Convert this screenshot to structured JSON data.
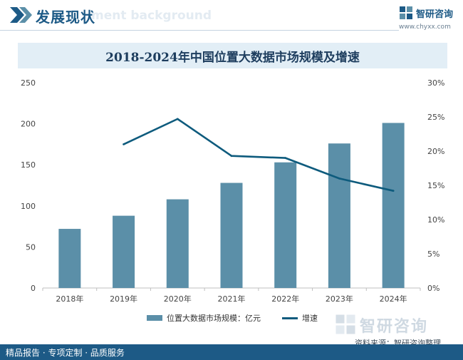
{
  "header": {
    "title": "发展现状",
    "ghost_text": "ment background",
    "brand_name": "智研咨询",
    "brand_url": "www.chyxx.com"
  },
  "colors": {
    "bar": "#5b8fa8",
    "line": "#0e5b7d",
    "header_blue": "#1d5a86",
    "title_band": "#e2eef6"
  },
  "chart_data": {
    "type": "bar",
    "title": "2018-2024年中国位置大数据市场规模及增速",
    "categories": [
      "2018年",
      "2019年",
      "2020年",
      "2021年",
      "2022年",
      "2023年",
      "2024年"
    ],
    "series": [
      {
        "name": "位置大数据市场规模：亿元",
        "type": "bar",
        "axis": "left",
        "values": [
          72,
          88,
          108,
          128,
          153,
          176,
          201
        ]
      },
      {
        "name": "增速",
        "type": "line",
        "axis": "right",
        "values": [
          null,
          21.0,
          24.7,
          19.3,
          19.0,
          16.0,
          14.2
        ]
      }
    ],
    "y_left": {
      "min": 0,
      "max": 250,
      "ticks": [
        "0",
        "50",
        "100",
        "150",
        "200",
        "250"
      ]
    },
    "y_right": {
      "min": 0,
      "max": 30,
      "ticks": [
        "0%",
        "5%",
        "10%",
        "15%",
        "20%",
        "25%",
        "30%"
      ]
    },
    "legend_position": "bottom",
    "grid": false
  },
  "footer": {
    "left_text": "精品报告 · 专项定制 · 品质服务",
    "watermark_name": "智研咨询",
    "source": "资料来源：智研咨询整理"
  }
}
